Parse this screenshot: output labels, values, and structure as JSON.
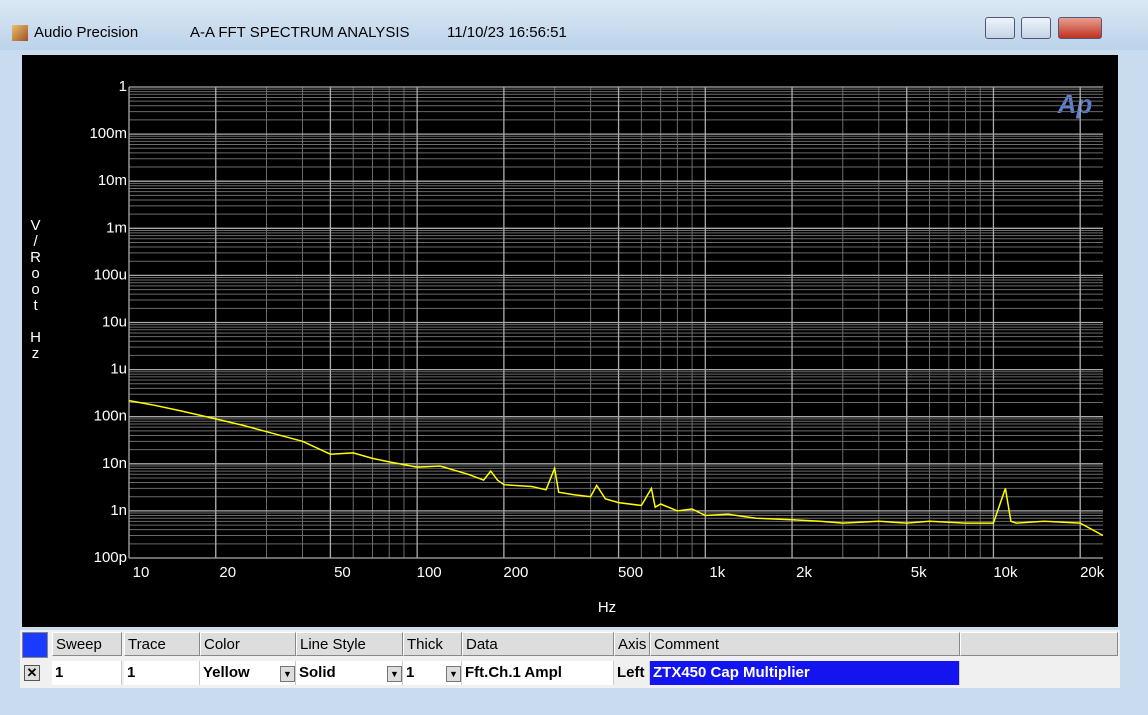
{
  "window": {
    "app": "Audio Precision",
    "title": "A-A FFT SPECTRUM ANALYSIS",
    "timestamp": "11/10/23 16:56:51"
  },
  "chart_data": {
    "type": "line",
    "logo": "Ap",
    "y_label": "V/Root Hz",
    "x_label": "Hz",
    "x_log": true,
    "y_log": true,
    "grid": true,
    "minor_grid": true,
    "color": "#ffff00",
    "xlim": [
      10,
      24000
    ],
    "ylim": [
      1e-10,
      1
    ],
    "xticks": [
      10,
      20,
      50,
      100,
      200,
      500,
      {
        "value": 1000,
        "label": "1k"
      },
      {
        "value": 2000,
        "label": "2k"
      },
      {
        "value": 5000,
        "label": "5k"
      },
      {
        "value": 10000,
        "label": "10k"
      },
      {
        "value": 20000,
        "label": "20k"
      }
    ],
    "yticks": [
      {
        "value": 1e-10,
        "label": "100p"
      },
      {
        "value": 1e-09,
        "label": "1n"
      },
      {
        "value": 1e-08,
        "label": "10n"
      },
      {
        "value": 1e-07,
        "label": "100n"
      },
      {
        "value": 1e-06,
        "label": "1u"
      },
      {
        "value": 1e-05,
        "label": "10u"
      },
      {
        "value": 0.0001,
        "label": "100u"
      },
      {
        "value": 0.001,
        "label": "1m"
      },
      {
        "value": 0.01,
        "label": "10m"
      },
      {
        "value": 0.1,
        "label": "100m"
      },
      1
    ],
    "x": [
      10,
      12,
      15,
      20,
      25,
      30,
      40,
      50,
      60,
      70,
      80,
      100,
      120,
      150,
      170,
      180,
      190,
      200,
      250,
      280,
      300,
      310,
      350,
      400,
      420,
      450,
      500,
      600,
      650,
      670,
      700,
      800,
      900,
      1000,
      1200,
      1500,
      2000,
      2500,
      3000,
      4000,
      5000,
      6000,
      8000,
      10000,
      11000,
      11500,
      12000,
      15000,
      20000,
      24000
    ],
    "values": [
      2.2e-07,
      1.8e-07,
      1.35e-07,
      9e-08,
      6.5e-08,
      4.8e-08,
      3e-08,
      1.6e-08,
      1.7e-08,
      1.3e-08,
      1.1e-08,
      8.5e-09,
      9e-09,
      6e-09,
      4.5e-09,
      7e-09,
      4.5e-09,
      3.6e-09,
      3.3e-09,
      2.8e-09,
      8e-09,
      2.5e-09,
      2.2e-09,
      2e-09,
      3.5e-09,
      1.8e-09,
      1.5e-09,
      1.3e-09,
      3e-09,
      1.2e-09,
      1.4e-09,
      1e-09,
      1.1e-09,
      8e-10,
      8.5e-10,
      7e-10,
      6.5e-10,
      6e-10,
      5.5e-10,
      6e-10,
      5.5e-10,
      6e-10,
      5.5e-10,
      5.5e-10,
      3e-09,
      6e-10,
      5.5e-10,
      6e-10,
      5.5e-10,
      3e-10
    ]
  },
  "table": {
    "headers": [
      "Sweep",
      "Trace",
      "Color",
      "Line Style",
      "Thick",
      "Data",
      "Axis",
      "Comment"
    ],
    "rows": [
      [
        "1",
        "1",
        "Yellow",
        "Solid",
        "1",
        "Fft.Ch.1 Ampl",
        "Left",
        "ZTX450 Cap Multiplier"
      ]
    ]
  }
}
